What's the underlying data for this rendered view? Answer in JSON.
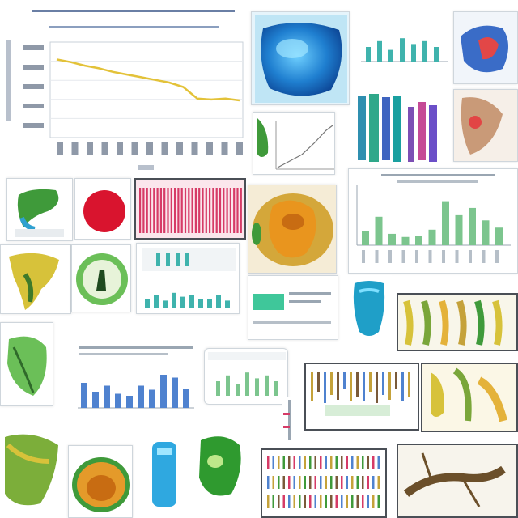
{
  "palette": {
    "yellow_line": "#e3c239",
    "blue_bars": "#4f82cf",
    "green_bars": "#7cc58e",
    "teal_bars": "#3fb3ad",
    "pink_stripes": "#d63b67",
    "organic_green": "#3f9a3a",
    "organic_yellow": "#d7c23a",
    "organic_orange": "#e49a2a",
    "cyan_blob": "#3f9fe0",
    "red_disc": "#d9142e"
  },
  "line_trend": {
    "type": "line",
    "values": [
      0.86,
      0.83,
      0.79,
      0.76,
      0.72,
      0.69,
      0.66,
      0.63,
      0.6,
      0.55,
      0.42,
      0.41,
      0.42,
      0.4
    ]
  },
  "green_bars": {
    "values": [
      0.28,
      0.55,
      0.22,
      0.16,
      0.18,
      0.3,
      0.85,
      0.58,
      0.72,
      0.48,
      0.34
    ]
  },
  "blue_bars": {
    "values": [
      0.62,
      0.4,
      0.55,
      0.35,
      0.3,
      0.55,
      0.45,
      0.82,
      0.75,
      0.48
    ]
  },
  "teal_mini_bars": {
    "values": [
      0.5,
      0.7,
      0.4,
      0.8,
      0.6,
      0.7,
      0.5
    ]
  },
  "strip_bars": {
    "values": [
      0.9,
      0.6,
      0.95,
      0.7,
      0.85,
      0.5,
      0.9,
      0.75
    ]
  }
}
